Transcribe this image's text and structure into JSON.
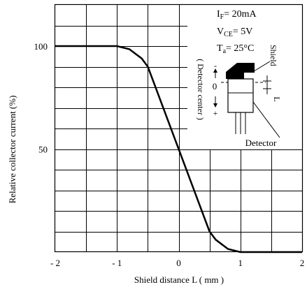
{
  "chart_data": {
    "type": "line",
    "title": "",
    "xlabel": "Shield distance L ( mm )",
    "ylabel": "Relative collector current (%)",
    "xlim": [
      -2,
      2
    ],
    "ylim": [
      0,
      120
    ],
    "xticks": [
      -2,
      -1,
      0,
      1,
      2
    ],
    "xtick_labels": [
      "- 2",
      "- 1",
      "0",
      "1",
      "2"
    ],
    "yticks": [
      50,
      100
    ],
    "ytick_labels": [
      "50",
      "100"
    ],
    "grid": true,
    "grid_x_step": 0.5,
    "grid_y_step": 10,
    "series": [
      {
        "x": [
          -2,
          -1.0,
          -0.8,
          -0.6,
          -0.5,
          0,
          0.5,
          0.6,
          0.8,
          1.0,
          2
        ],
        "values": [
          100,
          100,
          98.5,
          94,
          90,
          50,
          10,
          6,
          1.5,
          0,
          0
        ]
      }
    ],
    "conditions": [
      {
        "name": "I",
        "sub": "F",
        "value": "= 20mA"
      },
      {
        "name": "V",
        "sub": "CE",
        "value": "= 5V"
      },
      {
        "name": "T",
        "sub": "a",
        "value": "= 25°C"
      }
    ],
    "inset": {
      "shield_label": "Shield",
      "detector_label": "Detector",
      "center_label": "( Detector center )",
      "L_label": "L",
      "zero_label": "0",
      "minus_label": "-",
      "plus_label": "+"
    }
  }
}
